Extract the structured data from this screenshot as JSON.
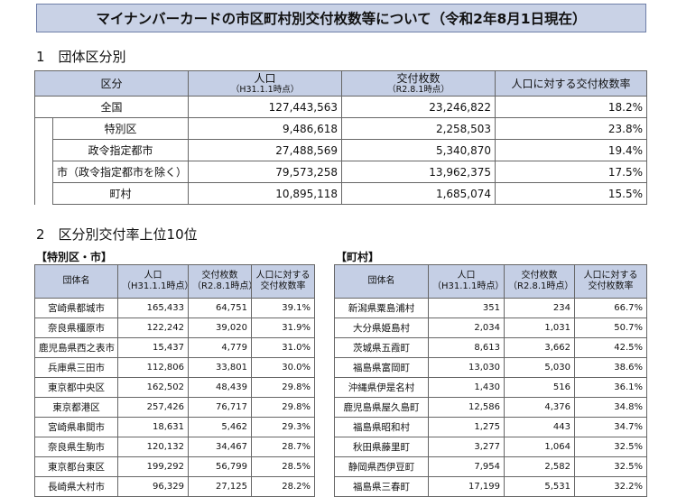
{
  "page_title": "マイナンバーカードの市区町村別交付枚数等について（令和2年8月1日現在）",
  "section1": {
    "heading": "1　団体区分別",
    "headers": {
      "category": "区分",
      "population": "人口",
      "population_sub": "（H31.1.1時点）",
      "issued": "交付枚数",
      "issued_sub": "（R2.8.1時点）",
      "rate": "人口に対する交付枚数率"
    },
    "rows": [
      {
        "label": "全国",
        "population": "127,443,563",
        "issued": "23,246,822",
        "rate": "18.2%"
      },
      {
        "label": "特別区",
        "population": "9,486,618",
        "issued": "2,258,503",
        "rate": "23.8%"
      },
      {
        "label": "政令指定都市",
        "population": "27,488,569",
        "issued": "5,340,870",
        "rate": "19.4%"
      },
      {
        "label": "市（政令指定都市を除く）",
        "population": "79,573,258",
        "issued": "13,962,375",
        "rate": "17.5%"
      },
      {
        "label": "町村",
        "population": "10,895,118",
        "issued": "1,685,074",
        "rate": "15.5%"
      }
    ]
  },
  "section2": {
    "heading": "2　区分別交付率上位10位",
    "headers": {
      "name": "団体名",
      "population": "人口",
      "population_sub": "（H31.1.1時点）",
      "issued": "交付枚数",
      "issued_sub": "（R2.8.1時点）",
      "rate_line1": "人口に対する",
      "rate_line2": "交付枚数率"
    },
    "left": {
      "label": "【特別区・市】",
      "rows": [
        {
          "name": "宮崎県都城市",
          "population": "165,433",
          "issued": "64,751",
          "rate": "39.1%"
        },
        {
          "name": "奈良県橿原市",
          "population": "122,242",
          "issued": "39,020",
          "rate": "31.9%"
        },
        {
          "name": "鹿児島県西之表市",
          "population": "15,437",
          "issued": "4,779",
          "rate": "31.0%"
        },
        {
          "name": "兵庫県三田市",
          "population": "112,806",
          "issued": "33,801",
          "rate": "30.0%"
        },
        {
          "name": "東京都中央区",
          "population": "162,502",
          "issued": "48,439",
          "rate": "29.8%"
        },
        {
          "name": "東京都港区",
          "population": "257,426",
          "issued": "76,717",
          "rate": "29.8%"
        },
        {
          "name": "宮崎県串間市",
          "population": "18,631",
          "issued": "5,462",
          "rate": "29.3%"
        },
        {
          "name": "奈良県生駒市",
          "population": "120,132",
          "issued": "34,467",
          "rate": "28.7%"
        },
        {
          "name": "東京都台東区",
          "population": "199,292",
          "issued": "56,799",
          "rate": "28.5%"
        },
        {
          "name": "長崎県大村市",
          "population": "96,329",
          "issued": "27,125",
          "rate": "28.2%"
        }
      ]
    },
    "right": {
      "label": "【町村】",
      "rows": [
        {
          "name": "新潟県粟島浦村",
          "population": "351",
          "issued": "234",
          "rate": "66.7%"
        },
        {
          "name": "大分県姫島村",
          "population": "2,034",
          "issued": "1,031",
          "rate": "50.7%"
        },
        {
          "name": "茨城県五霞町",
          "population": "8,613",
          "issued": "3,662",
          "rate": "42.5%"
        },
        {
          "name": "福島県富岡町",
          "population": "13,030",
          "issued": "5,030",
          "rate": "38.6%"
        },
        {
          "name": "沖縄県伊是名村",
          "population": "1,430",
          "issued": "516",
          "rate": "36.1%"
        },
        {
          "name": "鹿児島県屋久島町",
          "population": "12,586",
          "issued": "4,376",
          "rate": "34.8%"
        },
        {
          "name": "福島県昭和村",
          "population": "1,275",
          "issued": "443",
          "rate": "34.7%"
        },
        {
          "name": "秋田県藤里町",
          "population": "3,277",
          "issued": "1,064",
          "rate": "32.5%"
        },
        {
          "name": "静岡県西伊豆町",
          "population": "7,954",
          "issued": "2,582",
          "rate": "32.5%"
        },
        {
          "name": "福島県三春町",
          "population": "17,199",
          "issued": "5,531",
          "rate": "32.2%"
        }
      ]
    }
  }
}
